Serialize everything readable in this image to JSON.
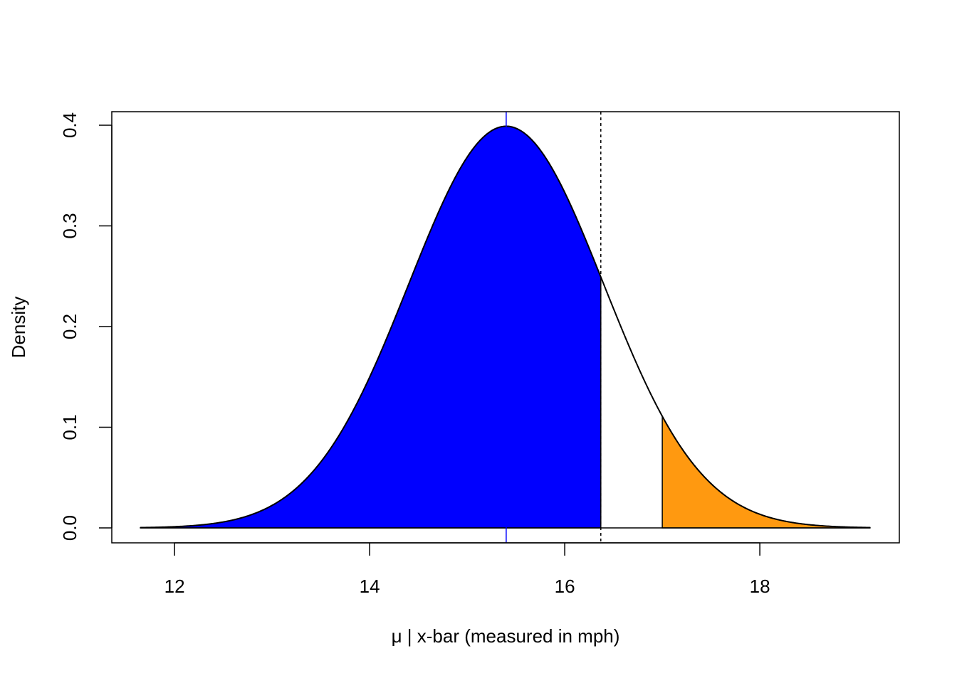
{
  "chart_data": {
    "type": "area",
    "title": "",
    "xlabel": "μ | x-bar (measured in mph)",
    "ylabel": "Density",
    "xlim": [
      11.357,
      19.43
    ],
    "ylim": [
      -0.0148,
      0.4134
    ],
    "x_ticks": [
      12,
      14,
      16,
      18
    ],
    "x_tick_labels": [
      "12",
      "14",
      "16",
      "18"
    ],
    "y_ticks": [
      0.0,
      0.1,
      0.2,
      0.3,
      0.4
    ],
    "y_tick_labels": [
      "0.0",
      "0.1",
      "0.2",
      "0.3",
      "0.4"
    ],
    "grid": false,
    "curve": {
      "distribution": "normal",
      "mean": 15.4,
      "sd": 1.0,
      "x_range": [
        11.65,
        19.13
      ],
      "color": "#000000"
    },
    "shaded_regions": [
      {
        "name": "lower-region",
        "from": 11.65,
        "to": 16.37,
        "color": "#0000FF"
      },
      {
        "name": "upper-tail",
        "from": 17.0,
        "to": 19.13,
        "color": "#FF9910"
      }
    ],
    "vertical_lines": [
      {
        "name": "mean-line",
        "x": 15.4,
        "color": "#0000FF",
        "style": "solid"
      },
      {
        "name": "cutoff-line",
        "x": 16.37,
        "color": "#000000",
        "style": "dotted"
      }
    ]
  }
}
